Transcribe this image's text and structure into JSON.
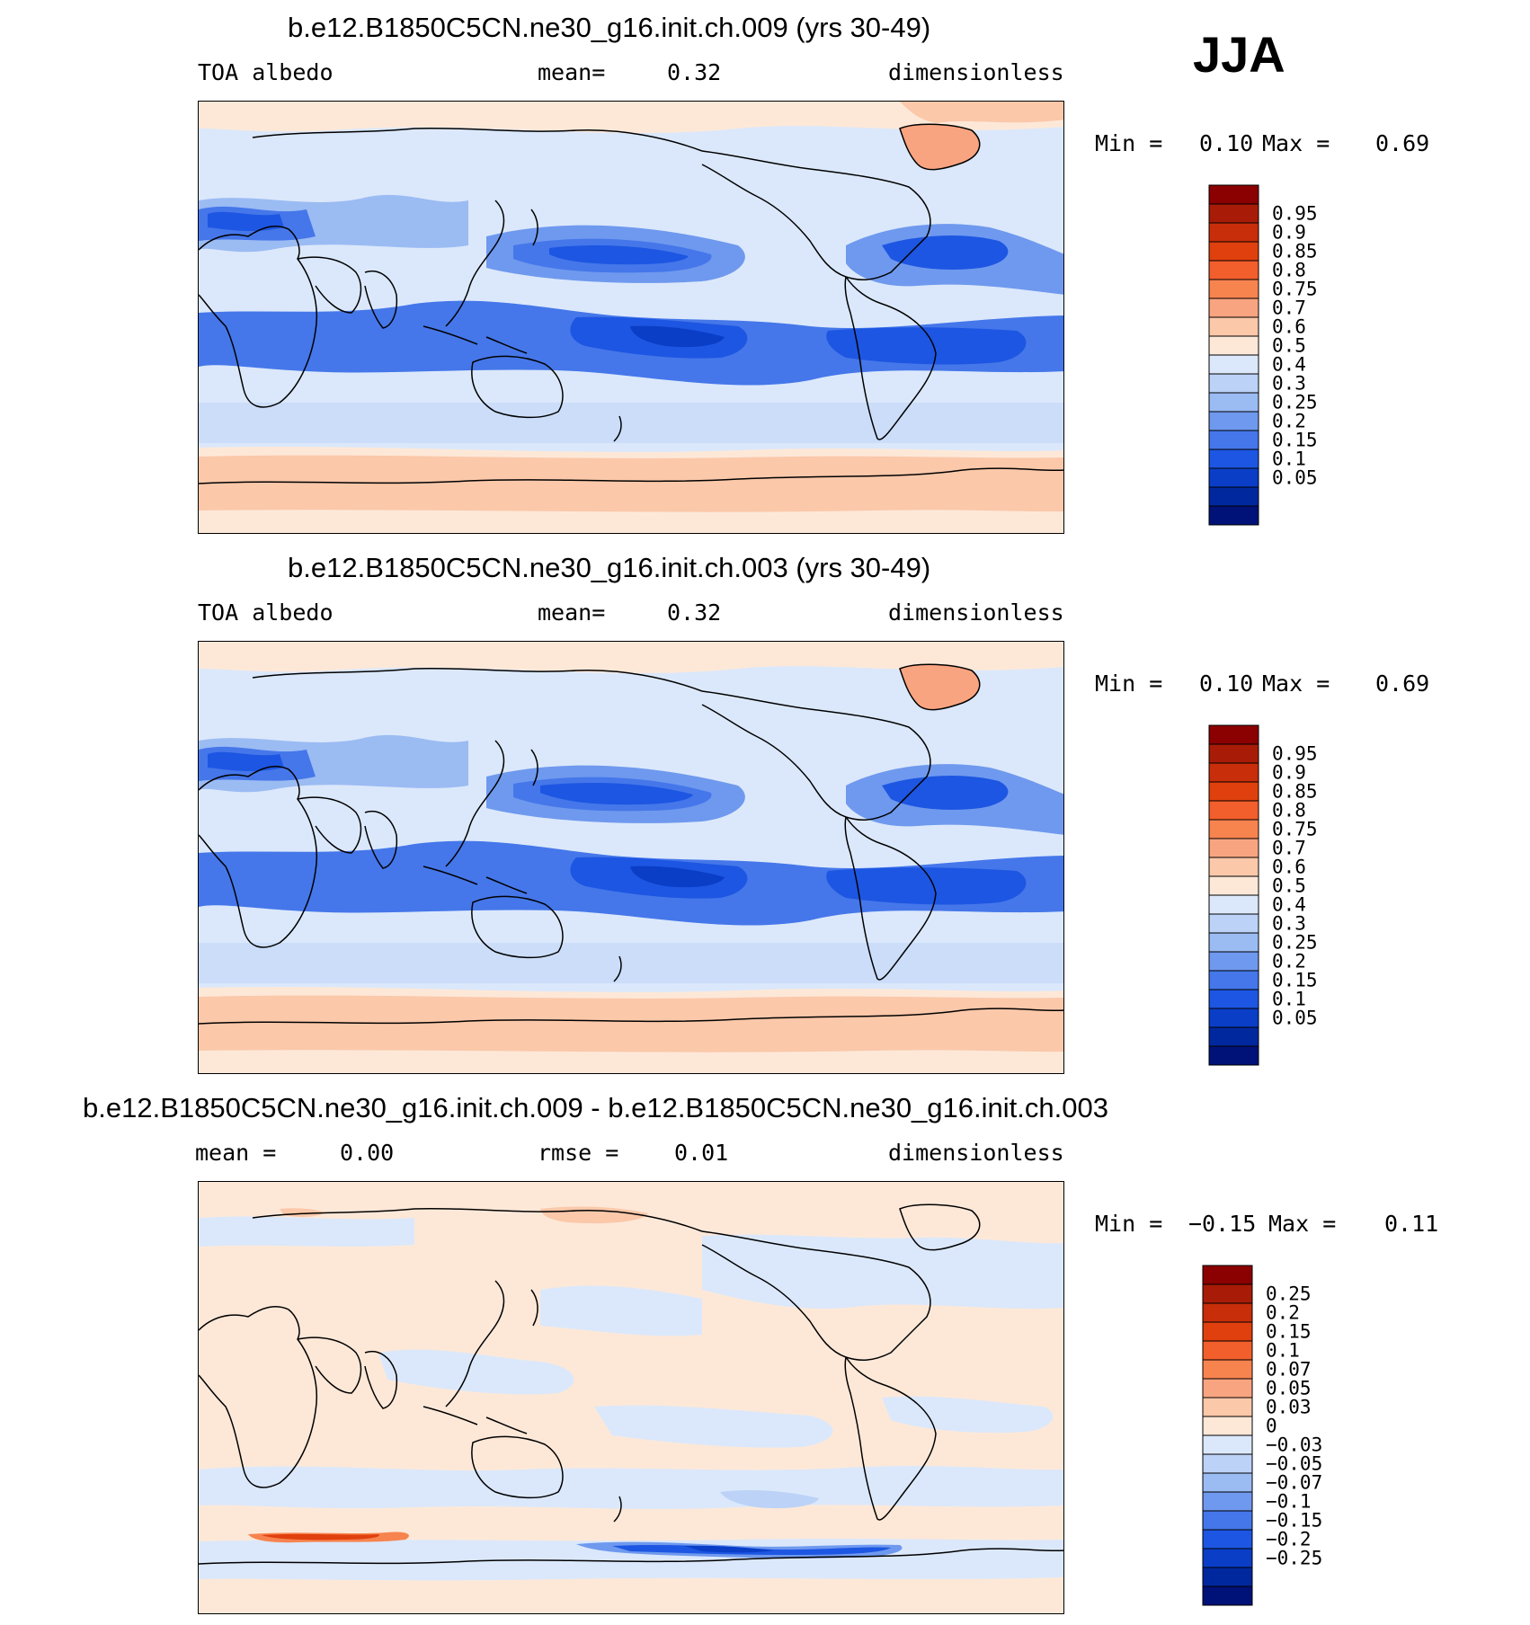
{
  "season": "JJA",
  "panels": [
    {
      "id": "top",
      "title": "b.e12.B1850C5CN.ne30_g16.init.ch.009 (yrs 30-49)",
      "left_label": "TOA albedo",
      "mean_label": "mean=",
      "mean_value": "0.32",
      "units": "dimensionless",
      "minmax": {
        "min_label": "Min =",
        "min": "0.10",
        "max_label": "Max =",
        "max": "0.69"
      },
      "colorbar": {
        "levels": [
          "0.95",
          "0.9",
          "0.85",
          "0.8",
          "0.75",
          "0.7",
          "0.6",
          "0.5",
          "0.4",
          "0.3",
          "0.25",
          "0.2",
          "0.15",
          "0.1",
          "0.05"
        ],
        "colors": [
          "#8b0000",
          "#a81c07",
          "#c82e0a",
          "#e0400d",
          "#f25e2c",
          "#f7834f",
          "#f9a481",
          "#fbc8aa",
          "#fde8d8",
          "#dbe8fb",
          "#bcd2f7",
          "#9bbbf3",
          "#6f99ee",
          "#4577ea",
          "#1d56e2",
          "#0a3ec7",
          "#00289e",
          "#001277"
        ]
      }
    },
    {
      "id": "middle",
      "title": "b.e12.B1850C5CN.ne30_g16.init.ch.003 (yrs 30-49)",
      "left_label": "TOA albedo",
      "mean_label": "mean=",
      "mean_value": "0.32",
      "units": "dimensionless",
      "minmax": {
        "min_label": "Min =",
        "min": "0.10",
        "max_label": "Max =",
        "max": "0.69"
      },
      "colorbar": {
        "levels": [
          "0.95",
          "0.9",
          "0.85",
          "0.8",
          "0.75",
          "0.7",
          "0.6",
          "0.5",
          "0.4",
          "0.3",
          "0.25",
          "0.2",
          "0.15",
          "0.1",
          "0.05"
        ],
        "colors": [
          "#8b0000",
          "#a81c07",
          "#c82e0a",
          "#e0400d",
          "#f25e2c",
          "#f7834f",
          "#f9a481",
          "#fbc8aa",
          "#fde8d8",
          "#dbe8fb",
          "#bcd2f7",
          "#9bbbf3",
          "#6f99ee",
          "#4577ea",
          "#1d56e2",
          "#0a3ec7",
          "#00289e",
          "#001277"
        ]
      }
    },
    {
      "id": "difference",
      "title": "b.e12.B1850C5CN.ne30_g16.init.ch.009 - b.e12.B1850C5CN.ne30_g16.init.ch.003",
      "left_label": "mean =",
      "left_value": "0.00",
      "mid_label": "rmse =",
      "mid_value": "0.01",
      "units": "dimensionless",
      "minmax": {
        "min_label": "Min =",
        "min": "−0.15",
        "max_label": "Max =",
        "max": "0.11"
      },
      "colorbar": {
        "levels": [
          "0.25",
          "0.2",
          "0.15",
          "0.1",
          "0.07",
          "0.05",
          "0.03",
          "0",
          "−0.03",
          "−0.05",
          "−0.07",
          "−0.1",
          "−0.15",
          "−0.2",
          "−0.25"
        ],
        "colors": [
          "#8b0000",
          "#a81c07",
          "#c82e0a",
          "#e0400d",
          "#f25e2c",
          "#f7834f",
          "#f9a481",
          "#fbc8aa",
          "#fde8d8",
          "#dbe8fb",
          "#bcd2f7",
          "#9bbbf3",
          "#6f99ee",
          "#4577ea",
          "#1d56e2",
          "#0a3ec7",
          "#00289e",
          "#001277"
        ]
      }
    }
  ]
}
